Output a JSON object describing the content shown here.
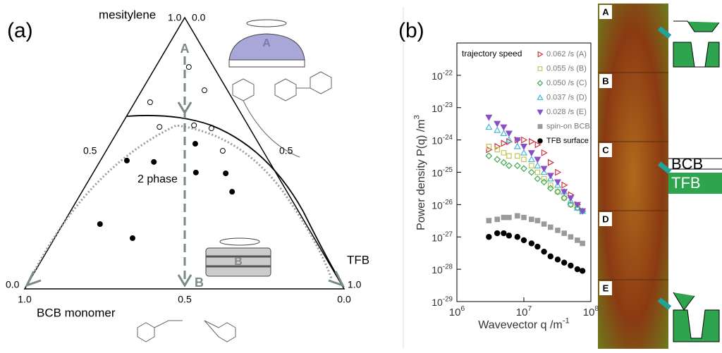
{
  "panel_a": {
    "label": "(a)",
    "vertex_top": "mesitylene",
    "vertex_right": "TFB",
    "vertex_left": "BCB monomer",
    "top_left_tick": "1.0",
    "top_right_tick": "0.0",
    "left_mid_tick": "0.5",
    "right_mid_tick": "0.5",
    "left_end_tick": "0.0",
    "right_end_tick": "1.0",
    "bottom_ticks": [
      "1.0",
      "0.5",
      "0.0"
    ],
    "region_label": "2 phase",
    "path_start": "A",
    "path_end": "B",
    "inset_a": "A",
    "inset_b": "B",
    "open_points": [
      [
        0.818,
        0.104
      ],
      [
        0.732,
        0.196
      ],
      [
        0.688,
        0.048
      ],
      [
        0.597,
        0.123
      ],
      [
        0.603,
        0.228
      ],
      [
        0.592,
        0.288
      ],
      [
        0.509,
        0.365
      ]
    ],
    "filled_points": [
      [
        0.535,
        0.266
      ],
      [
        0.473,
        0.083
      ],
      [
        0.468,
        0.17
      ],
      [
        0.429,
        0.321
      ],
      [
        0.426,
        0.416
      ],
      [
        0.358,
        0.47
      ],
      [
        0.239,
        0.116
      ],
      [
        0.187,
        0.244
      ]
    ]
  },
  "chart_data": {
    "type": "scatter",
    "panel_label": "(b)",
    "log_x": true,
    "log_y": true,
    "x_label": "Wavevector q /m",
    "x_label_exp": "-1",
    "y_label": "Power density P(q) /m",
    "y_label_exp": "3",
    "legend_title": "trajectory speed",
    "xlim": [
      1000000,
      100000000
    ],
    "ylim": [
      1e-29,
      1e-21
    ],
    "xticks": [
      {
        "value": 1000000,
        "label": "10",
        "exponent": "6"
      },
      {
        "value": 10000000,
        "label": "10",
        "exponent": "7"
      },
      {
        "value": 100000000,
        "label": "10",
        "exponent": "8"
      }
    ],
    "yticks": [
      {
        "value": 1e-22,
        "label": "10",
        "exponent": "-22"
      },
      {
        "value": 1e-23,
        "label": "10",
        "exponent": "-23"
      },
      {
        "value": 1e-24,
        "label": "10",
        "exponent": "-24"
      },
      {
        "value": 1e-25,
        "label": "10",
        "exponent": "-25"
      },
      {
        "value": 1e-26,
        "label": "10",
        "exponent": "-26"
      },
      {
        "value": 1e-27,
        "label": "10",
        "exponent": "-27"
      },
      {
        "value": 1e-28,
        "label": "10",
        "exponent": "-28"
      },
      {
        "value": 1e-29,
        "label": "10",
        "exponent": "-29"
      }
    ],
    "x": [
      3000000,
      4000000,
      5000000,
      6000000,
      8000000,
      10000000,
      13000000,
      16000000,
      20000000,
      25000000,
      32000000,
      40000000,
      50000000,
      63000000,
      75000000
    ],
    "series": [
      {
        "name": "0.062 /s (A)",
        "color": "#d0343f",
        "marker": "triangle-right",
        "filled": false,
        "values": [
          5e-25,
          6.3e-25,
          7.9e-25,
          8.9e-25,
          1e-24,
          1e-24,
          8.9e-25,
          7.1e-25,
          4e-25,
          2e-25,
          1e-25,
          4e-26,
          2e-26,
          1e-26,
          6.3e-27
        ]
      },
      {
        "name": "0.055 /s (B)",
        "color": "#c4c455",
        "marker": "square",
        "filled": false,
        "values": [
          6.3e-25,
          5e-25,
          4e-25,
          3.2e-25,
          3.2e-25,
          2.5e-25,
          1.6e-25,
          1e-25,
          6.3e-26,
          4e-26,
          2.5e-26,
          1.6e-26,
          1e-26,
          7.9e-27,
          6.3e-27
        ]
      },
      {
        "name": "0.050 /s (C)",
        "color": "#3aa84a",
        "marker": "diamond",
        "filled": false,
        "values": [
          3.2e-25,
          2.5e-25,
          2e-25,
          1.6e-25,
          1.6e-25,
          1.3e-25,
          1e-25,
          6.3e-26,
          5e-26,
          3.2e-26,
          2.5e-26,
          1.6e-26,
          1e-26,
          7.9e-27,
          6.3e-27
        ]
      },
      {
        "name": "0.037 /s (D)",
        "color": "#3fb8d8",
        "marker": "triangle-up",
        "filled": false,
        "values": [
          2.5e-24,
          2e-24,
          1.6e-24,
          1e-24,
          6.3e-25,
          4e-25,
          2.5e-25,
          1.6e-25,
          1e-25,
          6.3e-26,
          4e-26,
          2.5e-26,
          1.3e-26,
          7.9e-27,
          6.3e-27
        ]
      },
      {
        "name": "0.028 /s (E)",
        "color": "#8a4fc8",
        "marker": "triangle-down",
        "filled": true,
        "values": [
          5e-24,
          3.2e-24,
          2.5e-24,
          1.6e-24,
          1e-24,
          6.3e-25,
          4e-25,
          2.5e-25,
          1.3e-25,
          7.9e-26,
          5e-26,
          2.5e-26,
          1.6e-26,
          1e-26,
          6.3e-27
        ]
      },
      {
        "name": "spin-on BCB",
        "color": "#9a9a9a",
        "marker": "square",
        "filled": true,
        "values": [
          3.2e-27,
          3.5e-27,
          4e-27,
          4e-27,
          4.5e-27,
          4e-27,
          3.5e-27,
          3.2e-27,
          2.5e-27,
          2e-27,
          1.6e-27,
          1.3e-27,
          1e-27,
          7.9e-28,
          6.3e-28
        ]
      },
      {
        "name": "TFB surface",
        "color": "#000000",
        "marker": "circle",
        "filled": true,
        "values": [
          1e-27,
          1.3e-27,
          1.3e-27,
          1.1e-27,
          1e-27,
          7.9e-28,
          6.3e-28,
          5e-28,
          3.5e-28,
          2.5e-28,
          2e-28,
          1.6e-28,
          1.3e-28,
          1e-28,
          8.9e-29
        ]
      }
    ]
  },
  "afm": {
    "panels": [
      "A",
      "B",
      "C",
      "D",
      "E"
    ],
    "layer_top": "BCB",
    "layer_bottom": "TFB"
  }
}
